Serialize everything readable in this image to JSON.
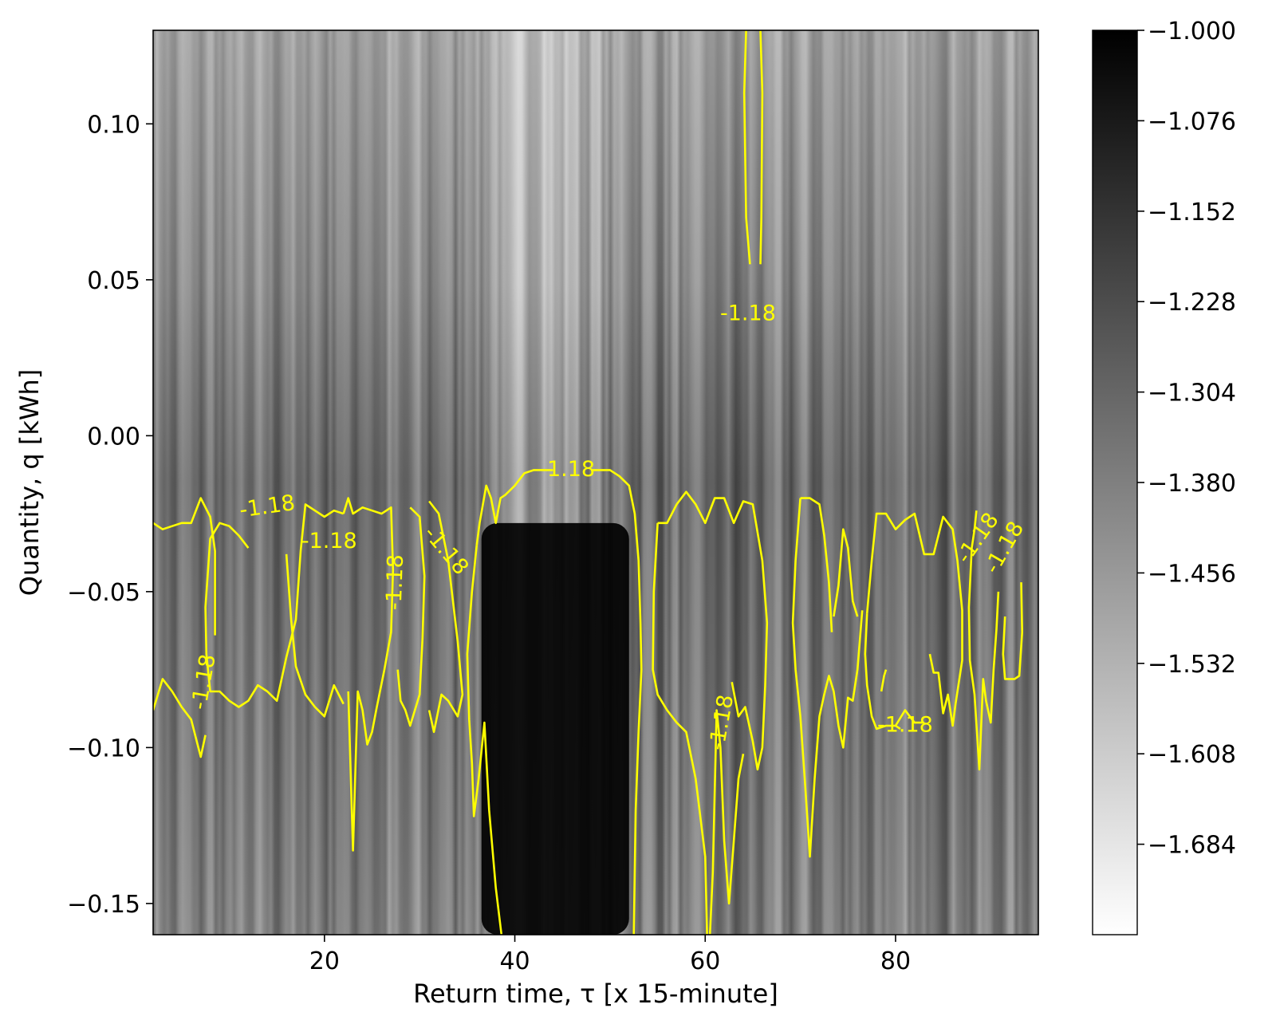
{
  "chart_data": {
    "type": "heatmap",
    "xlabel": "Return time, τ [x 15-minute]",
    "ylabel": "Quantity, q [kWh]",
    "xlim": [
      2,
      95
    ],
    "ylim": [
      -0.16,
      0.13
    ],
    "x_ticks": [
      20,
      40,
      60,
      80
    ],
    "y_ticks": [
      0.1,
      0.05,
      0.0,
      -0.05,
      -0.1,
      -0.15
    ],
    "y_tick_labels": [
      "0.10",
      "0.05",
      "0.00",
      "−0.05",
      "−0.10",
      "−0.15"
    ],
    "colormap": "gray_r",
    "colorbar": {
      "range": [
        -1.76,
        -1.0
      ],
      "ticks": [
        -1.0,
        -1.076,
        -1.152,
        -1.228,
        -1.304,
        -1.38,
        -1.456,
        -1.532,
        -1.608,
        -1.684
      ],
      "tick_labels": [
        "−1.000",
        "−1.076",
        "−1.152",
        "−1.228",
        "−1.304",
        "−1.380",
        "−1.456",
        "−1.532",
        "−1.608",
        "−1.684"
      ]
    },
    "contour": {
      "level": -1.18,
      "color": "#ffff00",
      "labels": [
        {
          "text": "-1.18",
          "x": 64.5,
          "y": 0.039,
          "rotation": 0
        },
        {
          "text": "-1.18",
          "x": 45.5,
          "y": -0.011,
          "rotation": 0
        },
        {
          "text": "-1.18",
          "x": 14.0,
          "y": -0.023,
          "rotation": -8
        },
        {
          "text": "-1.18",
          "x": 20.5,
          "y": -0.034,
          "rotation": 0
        },
        {
          "text": "-1.18",
          "x": 27.5,
          "y": -0.047,
          "rotation": -88
        },
        {
          "text": "-1.18",
          "x": 32.7,
          "y": -0.037,
          "rotation": 50
        },
        {
          "text": "-1.18",
          "x": 7.4,
          "y": -0.079,
          "rotation": -80
        },
        {
          "text": "-1.18",
          "x": 61.8,
          "y": -0.092,
          "rotation": -80
        },
        {
          "text": "-1.18",
          "x": 81.0,
          "y": -0.093,
          "rotation": 0
        },
        {
          "text": "-1.18",
          "x": 88.7,
          "y": -0.033,
          "rotation": -55
        },
        {
          "text": "-1.18",
          "x": 91.5,
          "y": -0.036,
          "rotation": -60
        }
      ]
    }
  }
}
